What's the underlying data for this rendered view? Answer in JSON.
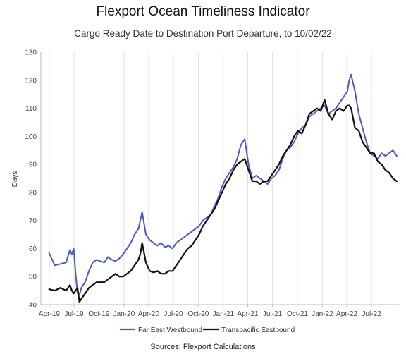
{
  "chart_data": {
    "type": "line",
    "title": "Flexport Ocean Timeliness Indicator",
    "subtitle": "Cargo Ready Date to Destination Port Departure, to 10/02/22",
    "xlabel": "",
    "ylabel": "Days",
    "ylim": [
      40,
      130
    ],
    "yticks": [
      40,
      50,
      60,
      70,
      80,
      90,
      100,
      110,
      120,
      130
    ],
    "x_tick_labels": [
      "Apr-19",
      "Jul-19",
      "Oct-19",
      "Jan-20",
      "Apr-20",
      "Jul-20",
      "Oct-20",
      "Jan-21",
      "Apr-21",
      "Jul-21",
      "Oct-21",
      "Jan-22",
      "Apr-22",
      "Jul-22"
    ],
    "grid": "vertical",
    "legend_position": "bottom",
    "source": "Sources: Flexport Calculations",
    "x": [
      "2019-03-31",
      "2019-04-21",
      "2019-05-12",
      "2019-06-02",
      "2019-06-16",
      "2019-06-23",
      "2019-06-30",
      "2019-07-07",
      "2019-07-14",
      "2019-07-21",
      "2019-07-28",
      "2019-08-11",
      "2019-08-25",
      "2019-09-08",
      "2019-09-22",
      "2019-10-06",
      "2019-10-20",
      "2019-11-03",
      "2019-11-17",
      "2019-12-01",
      "2019-12-15",
      "2019-12-29",
      "2020-01-12",
      "2020-01-26",
      "2020-02-09",
      "2020-02-23",
      "2020-03-01",
      "2020-03-08",
      "2020-03-22",
      "2020-04-05",
      "2020-04-19",
      "2020-05-03",
      "2020-05-17",
      "2020-05-31",
      "2020-06-14",
      "2020-06-28",
      "2020-07-12",
      "2020-07-26",
      "2020-08-09",
      "2020-08-23",
      "2020-09-06",
      "2020-09-20",
      "2020-10-04",
      "2020-10-18",
      "2020-11-01",
      "2020-11-15",
      "2020-11-29",
      "2020-12-13",
      "2020-12-27",
      "2021-01-10",
      "2021-01-24",
      "2021-02-07",
      "2021-02-21",
      "2021-03-07",
      "2021-03-21",
      "2021-04-04",
      "2021-04-18",
      "2021-05-02",
      "2021-05-16",
      "2021-05-30",
      "2021-06-13",
      "2021-06-27",
      "2021-07-11",
      "2021-07-25",
      "2021-08-08",
      "2021-08-22",
      "2021-09-05",
      "2021-09-19",
      "2021-10-03",
      "2021-10-17",
      "2021-10-31",
      "2021-11-14",
      "2021-11-28",
      "2021-12-12",
      "2021-12-26",
      "2022-01-09",
      "2022-01-23",
      "2022-02-06",
      "2022-02-20",
      "2022-03-06",
      "2022-03-20",
      "2022-04-03",
      "2022-04-10",
      "2022-04-17",
      "2022-05-01",
      "2022-05-15",
      "2022-05-29",
      "2022-06-12",
      "2022-06-26",
      "2022-07-10",
      "2022-07-24",
      "2022-08-07",
      "2022-08-21",
      "2022-09-04",
      "2022-09-18",
      "2022-10-02"
    ],
    "series": [
      {
        "name": "Far East Westbound",
        "color": "#4a5bc4",
        "values": [
          58.5,
          54,
          54.5,
          55,
          59.5,
          58,
          60,
          51,
          44,
          43.5,
          46,
          48,
          52,
          55,
          56,
          55.5,
          55,
          57,
          56,
          55.5,
          56.5,
          58,
          60,
          62,
          65,
          67,
          70,
          73,
          65,
          63,
          62,
          61,
          62,
          60.5,
          61,
          60,
          62,
          63,
          64,
          65,
          66,
          67,
          68,
          70,
          71,
          72,
          75,
          78,
          82,
          85,
          87,
          89,
          92,
          97,
          99,
          90,
          85,
          86,
          85,
          84,
          83,
          85,
          86,
          88,
          92,
          95,
          96,
          98,
          101,
          103,
          104,
          107,
          108,
          109,
          110,
          111,
          108,
          109,
          110,
          112,
          114,
          116,
          120,
          122,
          116,
          108,
          103,
          98,
          94,
          93,
          92,
          94,
          93,
          94,
          95,
          93
        ]
      },
      {
        "name": "Transpacific Eastbound",
        "color": "#111111",
        "values": [
          45.5,
          45,
          46,
          45,
          47,
          45,
          44,
          45,
          46,
          41,
          42,
          44,
          46,
          47,
          48,
          48,
          48,
          49,
          50,
          51,
          50,
          50,
          51,
          52,
          54,
          56,
          58,
          62,
          55,
          52,
          51.5,
          52,
          51,
          51,
          52,
          52,
          54,
          56,
          58,
          60,
          61,
          63,
          65,
          68,
          70,
          72,
          74,
          77,
          80,
          83,
          85,
          88,
          90,
          91,
          92,
          88,
          84,
          84,
          83,
          84,
          84,
          86,
          88,
          90,
          93,
          95,
          97,
          100,
          102,
          101,
          104,
          108,
          109,
          110,
          109,
          113,
          108,
          106,
          109,
          110,
          109,
          111,
          111,
          110,
          103,
          102,
          98,
          96,
          94,
          94,
          91,
          90,
          88,
          87,
          85,
          84
        ]
      }
    ]
  }
}
